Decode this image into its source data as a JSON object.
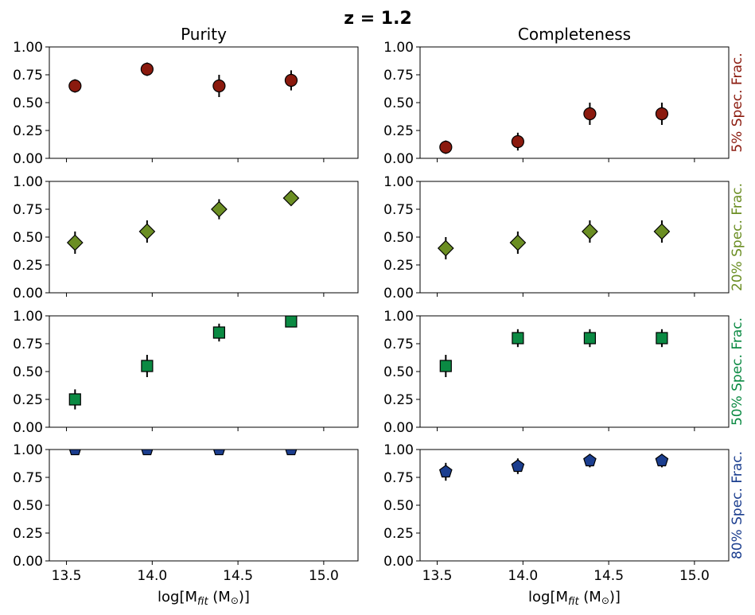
{
  "suptitle": "z = 1.2",
  "columns": [
    {
      "title": "Purity"
    },
    {
      "title": "Completeness"
    }
  ],
  "xlabel": {
    "main": "log[M",
    "sub": "fit",
    "unit": " (M",
    "sun": "⊙",
    "close": ")]"
  },
  "rows": [
    {
      "label": "5% Spec. Frac.",
      "color": "#8b1a0e",
      "marker": "circle"
    },
    {
      "label": "20% Spec. Frac.",
      "color": "#6b8e23",
      "marker": "diamond"
    },
    {
      "label": "50% Spec. Frac.",
      "color": "#0b8a43",
      "marker": "square"
    },
    {
      "label": "80% Spec. Frac.",
      "color": "#1b3e8f",
      "marker": "pentagon"
    }
  ],
  "chart_data": {
    "type": "scatter",
    "xlim": [
      13.4,
      15.2
    ],
    "ylim": [
      0.0,
      1.0
    ],
    "xticks": [
      "13.5",
      "14.0",
      "14.5",
      "15.0"
    ],
    "yticks": [
      "0.00",
      "0.25",
      "0.50",
      "0.75",
      "1.00"
    ],
    "x": [
      13.55,
      13.97,
      14.39,
      14.81
    ],
    "panels": [
      {
        "row": 0,
        "col": 0,
        "y": [
          0.65,
          0.8,
          0.65,
          0.7
        ],
        "err": [
          0.06,
          0.06,
          0.1,
          0.09
        ]
      },
      {
        "row": 0,
        "col": 1,
        "y": [
          0.1,
          0.15,
          0.4,
          0.4
        ],
        "err": [
          0.06,
          0.08,
          0.1,
          0.1
        ]
      },
      {
        "row": 1,
        "col": 0,
        "y": [
          0.45,
          0.55,
          0.75,
          0.85
        ],
        "err": [
          0.1,
          0.1,
          0.09,
          0.06
        ]
      },
      {
        "row": 1,
        "col": 1,
        "y": [
          0.4,
          0.45,
          0.55,
          0.55
        ],
        "err": [
          0.1,
          0.1,
          0.1,
          0.1
        ]
      },
      {
        "row": 2,
        "col": 0,
        "y": [
          0.25,
          0.55,
          0.85,
          0.95
        ],
        "err": [
          0.09,
          0.1,
          0.08,
          0.05
        ]
      },
      {
        "row": 2,
        "col": 1,
        "y": [
          0.55,
          0.8,
          0.8,
          0.8
        ],
        "err": [
          0.1,
          0.08,
          0.08,
          0.08
        ]
      },
      {
        "row": 3,
        "col": 0,
        "y": [
          1.0,
          1.0,
          1.0,
          1.0
        ],
        "err": [
          0.0,
          0.0,
          0.0,
          0.0
        ]
      },
      {
        "row": 3,
        "col": 1,
        "y": [
          0.8,
          0.85,
          0.9,
          0.9
        ],
        "err": [
          0.08,
          0.07,
          0.06,
          0.06
        ]
      }
    ]
  }
}
